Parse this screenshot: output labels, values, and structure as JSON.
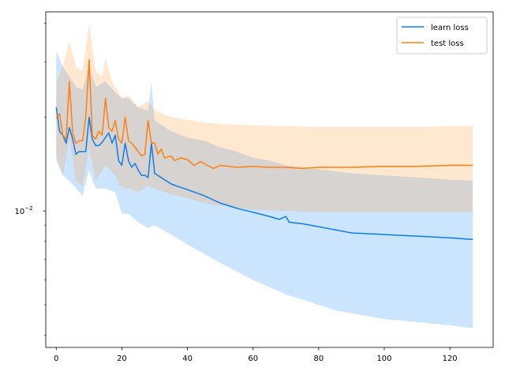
{
  "chart_data": {
    "type": "line",
    "title": "",
    "xlabel": "",
    "ylabel": "",
    "xlim": [
      -3.2,
      133.2
    ],
    "ylim": [
      0.00365,
      0.0435
    ],
    "yscale": "log",
    "x_ticks": [
      0,
      20,
      40,
      60,
      80,
      100,
      120
    ],
    "y_major_ticks": [
      {
        "value": 0.01,
        "base": "10",
        "exp": "−2"
      }
    ],
    "y_minor_ticks": [
      0.004,
      0.005,
      0.006,
      0.007,
      0.008,
      0.009,
      0.02,
      0.03,
      0.04
    ],
    "grid": false,
    "legend_position": "upper-right",
    "series": [
      {
        "name": "learn loss",
        "color": "#0c7de8",
        "band_color": "#1e90ff",
        "band_opacity": 0.23,
        "points": [
          [
            0,
            0.0215
          ],
          [
            1,
            0.018
          ],
          [
            2,
            0.0175
          ],
          [
            3,
            0.0165
          ],
          [
            4,
            0.0185
          ],
          [
            5,
            0.017
          ],
          [
            6,
            0.0152
          ],
          [
            7,
            0.0155
          ],
          [
            8,
            0.0155
          ],
          [
            9,
            0.0155
          ],
          [
            10,
            0.02
          ],
          [
            11,
            0.017
          ],
          [
            12,
            0.0162
          ],
          [
            13,
            0.0162
          ],
          [
            14,
            0.0166
          ],
          [
            15,
            0.0172
          ],
          [
            16,
            0.0178
          ],
          [
            17,
            0.0165
          ],
          [
            18,
            0.0175
          ],
          [
            19,
            0.0145
          ],
          [
            20,
            0.014
          ],
          [
            21,
            0.0165
          ],
          [
            22,
            0.0145
          ],
          [
            23,
            0.0138
          ],
          [
            24,
            0.0142
          ],
          [
            25,
            0.0135
          ],
          [
            26,
            0.013
          ],
          [
            27,
            0.013
          ],
          [
            28,
            0.0128
          ],
          [
            29,
            0.0165
          ],
          [
            30,
            0.0132
          ],
          [
            35,
            0.0122
          ],
          [
            40,
            0.0117
          ],
          [
            45,
            0.0112
          ],
          [
            50,
            0.0106
          ],
          [
            55,
            0.0102
          ],
          [
            60,
            0.0099
          ],
          [
            65,
            0.0096
          ],
          [
            68,
            0.0094
          ],
          [
            70,
            0.0096
          ],
          [
            71,
            0.0092
          ],
          [
            75,
            0.0091
          ],
          [
            80,
            0.0089
          ],
          [
            85,
            0.0087
          ],
          [
            90,
            0.0085
          ],
          [
            100,
            0.0084
          ],
          [
            110,
            0.0083
          ],
          [
            120,
            0.0082
          ],
          [
            127,
            0.0081
          ]
        ],
        "upper": [
          [
            0,
            0.0325
          ],
          [
            2,
            0.029
          ],
          [
            4,
            0.027
          ],
          [
            6,
            0.025
          ],
          [
            8,
            0.0245
          ],
          [
            10,
            0.029
          ],
          [
            12,
            0.025
          ],
          [
            15,
            0.026
          ],
          [
            18,
            0.024
          ],
          [
            20,
            0.023
          ],
          [
            22,
            0.023
          ],
          [
            25,
            0.0215
          ],
          [
            28,
            0.021
          ],
          [
            29,
            0.026
          ],
          [
            30,
            0.0195
          ],
          [
            35,
            0.018
          ],
          [
            40,
            0.0172
          ],
          [
            45,
            0.0168
          ],
          [
            50,
            0.016
          ],
          [
            55,
            0.0155
          ],
          [
            60,
            0.0148
          ],
          [
            65,
            0.0145
          ],
          [
            70,
            0.014
          ],
          [
            75,
            0.0138
          ],
          [
            80,
            0.0136
          ],
          [
            90,
            0.0132
          ],
          [
            100,
            0.013
          ],
          [
            110,
            0.0128
          ],
          [
            120,
            0.0126
          ],
          [
            127,
            0.0125
          ]
        ],
        "lower": [
          [
            0,
            0.0145
          ],
          [
            2,
            0.013
          ],
          [
            4,
            0.0125
          ],
          [
            6,
            0.0118
          ],
          [
            8,
            0.0112
          ],
          [
            10,
            0.0135
          ],
          [
            12,
            0.0118
          ],
          [
            15,
            0.0118
          ],
          [
            18,
            0.0115
          ],
          [
            20,
            0.0098
          ],
          [
            22,
            0.0098
          ],
          [
            25,
            0.0092
          ],
          [
            28,
            0.0088
          ],
          [
            30,
            0.009
          ],
          [
            35,
            0.0084
          ],
          [
            40,
            0.0078
          ],
          [
            45,
            0.0073
          ],
          [
            50,
            0.0068
          ],
          [
            55,
            0.0064
          ],
          [
            60,
            0.006
          ],
          [
            65,
            0.0057
          ],
          [
            70,
            0.0054
          ],
          [
            75,
            0.0052
          ],
          [
            80,
            0.005
          ],
          [
            85,
            0.0048
          ],
          [
            90,
            0.0047
          ],
          [
            100,
            0.0045
          ],
          [
            110,
            0.0044
          ],
          [
            120,
            0.0043
          ],
          [
            127,
            0.0042
          ]
        ]
      },
      {
        "name": "test loss",
        "color": "#ff7f0e",
        "band_color": "#ff9933",
        "band_opacity": 0.23,
        "points": [
          [
            0,
            0.0198
          ],
          [
            1,
            0.0205
          ],
          [
            2,
            0.0175
          ],
          [
            3,
            0.017
          ],
          [
            4,
            0.026
          ],
          [
            5,
            0.0178
          ],
          [
            6,
            0.0165
          ],
          [
            7,
            0.0168
          ],
          [
            8,
            0.0168
          ],
          [
            9,
            0.02
          ],
          [
            10,
            0.0305
          ],
          [
            11,
            0.0175
          ],
          [
            12,
            0.017
          ],
          [
            13,
            0.018
          ],
          [
            14,
            0.0175
          ],
          [
            15,
            0.023
          ],
          [
            16,
            0.0185
          ],
          [
            17,
            0.018
          ],
          [
            18,
            0.0195
          ],
          [
            19,
            0.017
          ],
          [
            20,
            0.0165
          ],
          [
            21,
            0.02
          ],
          [
            22,
            0.0168
          ],
          [
            23,
            0.0165
          ],
          [
            24,
            0.016
          ],
          [
            25,
            0.0155
          ],
          [
            26,
            0.015
          ],
          [
            27,
            0.0152
          ],
          [
            28,
            0.0195
          ],
          [
            29,
            0.0165
          ],
          [
            30,
            0.0165
          ],
          [
            31,
            0.0152
          ],
          [
            32,
            0.0158
          ],
          [
            33,
            0.0148
          ],
          [
            35,
            0.015
          ],
          [
            36,
            0.0145
          ],
          [
            38,
            0.0148
          ],
          [
            40,
            0.0146
          ],
          [
            42,
            0.014
          ],
          [
            44,
            0.0144
          ],
          [
            46,
            0.014
          ],
          [
            48,
            0.0137
          ],
          [
            50,
            0.014
          ],
          [
            55,
            0.0138
          ],
          [
            60,
            0.0139
          ],
          [
            65,
            0.0138
          ],
          [
            70,
            0.0138
          ],
          [
            75,
            0.0137
          ],
          [
            80,
            0.0138
          ],
          [
            85,
            0.0138
          ],
          [
            90,
            0.0138
          ],
          [
            100,
            0.0139
          ],
          [
            110,
            0.0139
          ],
          [
            120,
            0.014
          ],
          [
            127,
            0.014
          ]
        ],
        "upper": [
          [
            0,
            0.026
          ],
          [
            2,
            0.029
          ],
          [
            4,
            0.035
          ],
          [
            6,
            0.029
          ],
          [
            8,
            0.028
          ],
          [
            10,
            0.04
          ],
          [
            12,
            0.028
          ],
          [
            14,
            0.027
          ],
          [
            15,
            0.031
          ],
          [
            17,
            0.026
          ],
          [
            20,
            0.023
          ],
          [
            22,
            0.0235
          ],
          [
            25,
            0.0215
          ],
          [
            28,
            0.0225
          ],
          [
            30,
            0.021
          ],
          [
            35,
            0.02
          ],
          [
            40,
            0.0196
          ],
          [
            45,
            0.0192
          ],
          [
            50,
            0.019
          ],
          [
            60,
            0.0188
          ],
          [
            70,
            0.0187
          ],
          [
            80,
            0.0186
          ],
          [
            90,
            0.0186
          ],
          [
            100,
            0.0186
          ],
          [
            110,
            0.0186
          ],
          [
            120,
            0.0187
          ],
          [
            127,
            0.0187
          ]
        ],
        "lower": [
          [
            0,
            0.015
          ],
          [
            2,
            0.013
          ],
          [
            4,
            0.017
          ],
          [
            6,
            0.0125
          ],
          [
            8,
            0.012
          ],
          [
            10,
            0.016
          ],
          [
            12,
            0.0125
          ],
          [
            15,
            0.014
          ],
          [
            18,
            0.013
          ],
          [
            20,
            0.0118
          ],
          [
            22,
            0.0118
          ],
          [
            25,
            0.0115
          ],
          [
            28,
            0.012
          ],
          [
            30,
            0.0118
          ],
          [
            35,
            0.0113
          ],
          [
            40,
            0.011
          ],
          [
            45,
            0.0106
          ],
          [
            50,
            0.0104
          ],
          [
            60,
            0.0101
          ],
          [
            70,
            0.01
          ],
          [
            80,
            0.0099
          ],
          [
            90,
            0.0099
          ],
          [
            100,
            0.0099
          ],
          [
            110,
            0.0099
          ],
          [
            120,
            0.0099
          ],
          [
            127,
            0.0099
          ]
        ]
      }
    ]
  }
}
